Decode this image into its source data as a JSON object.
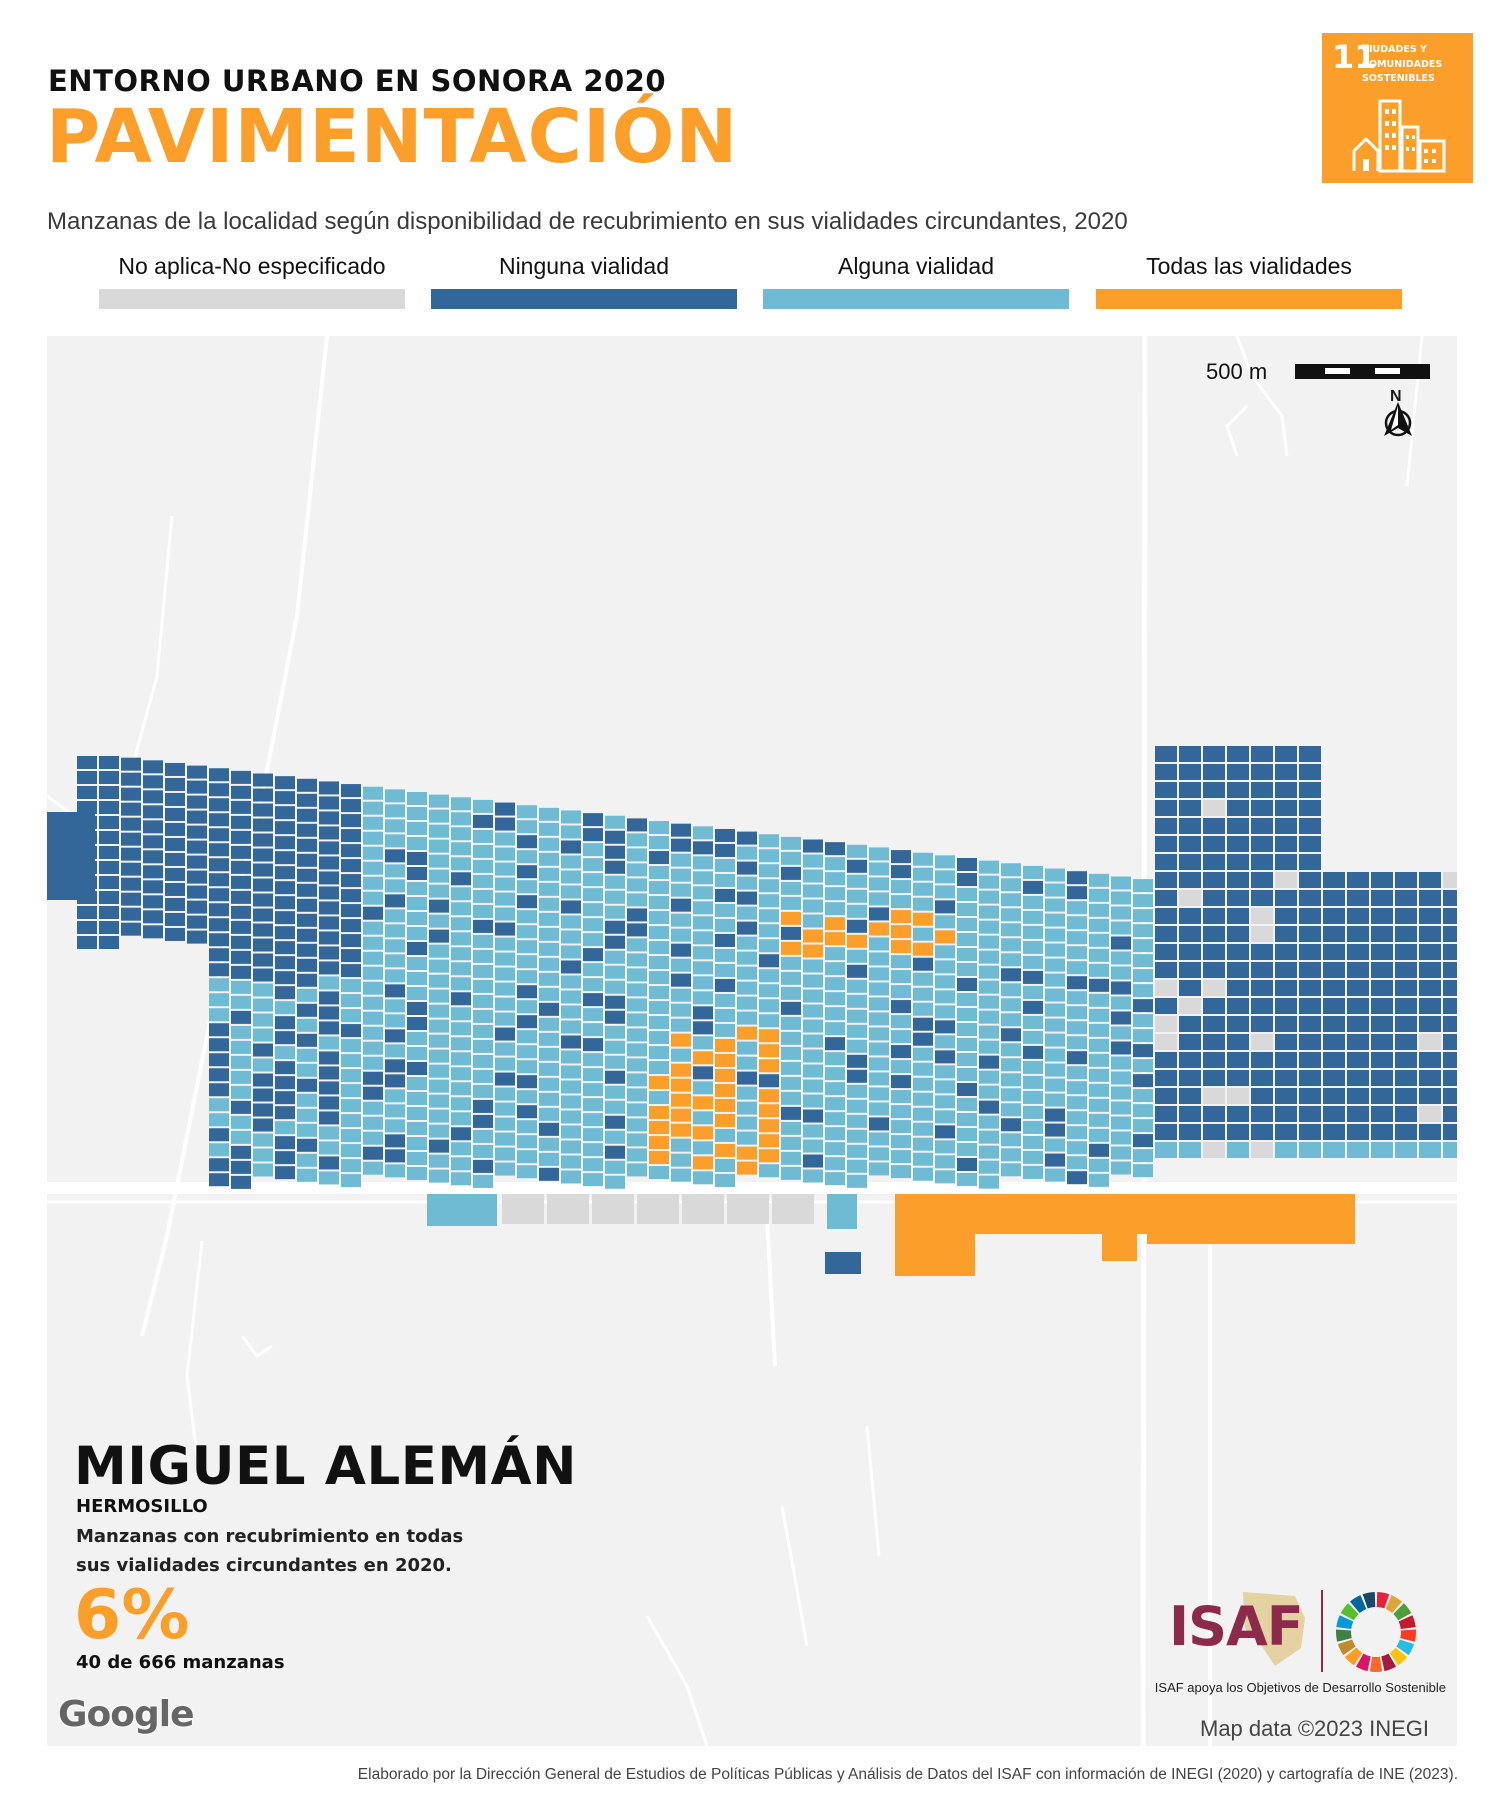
{
  "header": {
    "kicker": "ENTORNO URBANO EN SONORA 2020",
    "title": "PAVIMENTACIÓN",
    "subtitle": "Manzanas de la localidad según disponibilidad de recubrimiento en sus vialidades circundantes, 2020"
  },
  "sdg_badge": {
    "number": "11",
    "label": "CIUDADES Y COMUNIDADES SOSTENIBLES",
    "color": "#fb9e2a"
  },
  "legend": [
    {
      "label": "No aplica-No especificado",
      "color": "#d9d9d9"
    },
    {
      "label": "Ninguna vialidad",
      "color": "#336699"
    },
    {
      "label": "Alguna vialidad",
      "color": "#6fbbd3"
    },
    {
      "label": "Todas las vialidades",
      "color": "#fb9e2a"
    }
  ],
  "map": {
    "scale_label": "500 m",
    "north_label": "N",
    "credit": "Map data ©2023 INEGI",
    "basemap_logo": "Google"
  },
  "locality": {
    "name": "MIGUEL ALEMÁN",
    "municipality": "HERMOSILLO",
    "description": "Manzanas con recubrimiento en todas sus vialidades circundantes en 2020.",
    "percentage": "6%",
    "count_text": "40 de 666 manzanas",
    "blocks_all_paved": 40,
    "blocks_total": 666
  },
  "logos": {
    "isaf": "ISAF",
    "isaf_caption": "ISAF apoya los Objetivos de Desarrollo Sostenible"
  },
  "footer": "Elaborado por la Dirección General de Estudios de Políticas Públicas y Análisis de Datos del ISAF con información de INEGI (2020) y cartografía de INE (2023)."
}
